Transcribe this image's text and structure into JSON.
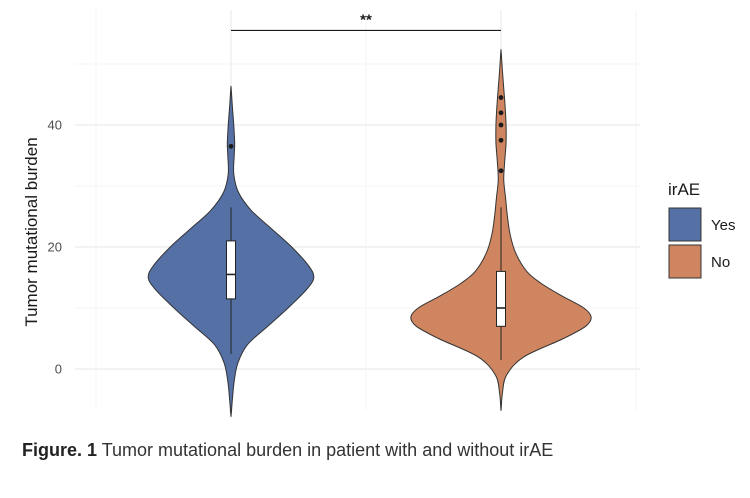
{
  "chart_data": {
    "type": "violin",
    "title": "",
    "xlabel": "",
    "ylabel": "Tumor mutational burden",
    "ylim": [
      -8,
      52
    ],
    "yticks": [
      0,
      20,
      40
    ],
    "grid": true,
    "legend": {
      "title": "irAE",
      "placement": "right",
      "entries": [
        {
          "label": "Yes",
          "color": "#5470a5"
        },
        {
          "label": "No",
          "color": "#cf8660"
        }
      ]
    },
    "significance": {
      "label": "**",
      "between": [
        "Yes",
        "No"
      ],
      "y": 55.5
    },
    "groups": [
      {
        "name": "Yes",
        "color": "#5470a5",
        "box": {
          "q1": 11.5,
          "median": 15.5,
          "q3": 21,
          "whisker_low": 2.5,
          "whisker_high": 26.5
        },
        "outliers": [
          36.5
        ],
        "density": [
          [
            -7.5,
            0.002
          ],
          [
            -5,
            0.015
          ],
          [
            -2,
            0.035
          ],
          [
            1,
            0.075
          ],
          [
            4,
            0.18
          ],
          [
            7,
            0.4
          ],
          [
            10,
            0.62
          ],
          [
            13,
            0.82
          ],
          [
            15,
            0.9
          ],
          [
            17,
            0.84
          ],
          [
            20,
            0.66
          ],
          [
            23,
            0.44
          ],
          [
            26,
            0.22
          ],
          [
            29,
            0.08
          ],
          [
            32,
            0.03
          ],
          [
            35,
            0.035
          ],
          [
            37,
            0.04
          ],
          [
            40,
            0.03
          ],
          [
            43,
            0.015
          ],
          [
            46,
            0.002
          ]
        ]
      },
      {
        "name": "No",
        "color": "#cf8660",
        "box": {
          "q1": 7,
          "median": 10,
          "q3": 16,
          "whisker_low": 1.5,
          "whisker_high": 26.5
        },
        "outliers": [
          32.5,
          37.5,
          40,
          42,
          44.5
        ],
        "density": [
          [
            -6.5,
            0.002
          ],
          [
            -4,
            0.015
          ],
          [
            -1,
            0.06
          ],
          [
            2,
            0.25
          ],
          [
            5,
            0.68
          ],
          [
            7,
            0.92
          ],
          [
            8.5,
            0.98
          ],
          [
            10,
            0.9
          ],
          [
            12,
            0.66
          ],
          [
            14,
            0.44
          ],
          [
            16,
            0.28
          ],
          [
            19,
            0.16
          ],
          [
            22,
            0.1
          ],
          [
            25,
            0.07
          ],
          [
            28,
            0.05
          ],
          [
            31,
            0.03
          ],
          [
            34,
            0.04
          ],
          [
            37,
            0.055
          ],
          [
            40,
            0.055
          ],
          [
            43,
            0.045
          ],
          [
            46,
            0.03
          ],
          [
            49,
            0.015
          ],
          [
            52,
            0.002
          ]
        ]
      }
    ]
  },
  "caption": {
    "prefix": "Figure. 1",
    "text": " Tumor mutational burden in patient with and without irAE"
  }
}
